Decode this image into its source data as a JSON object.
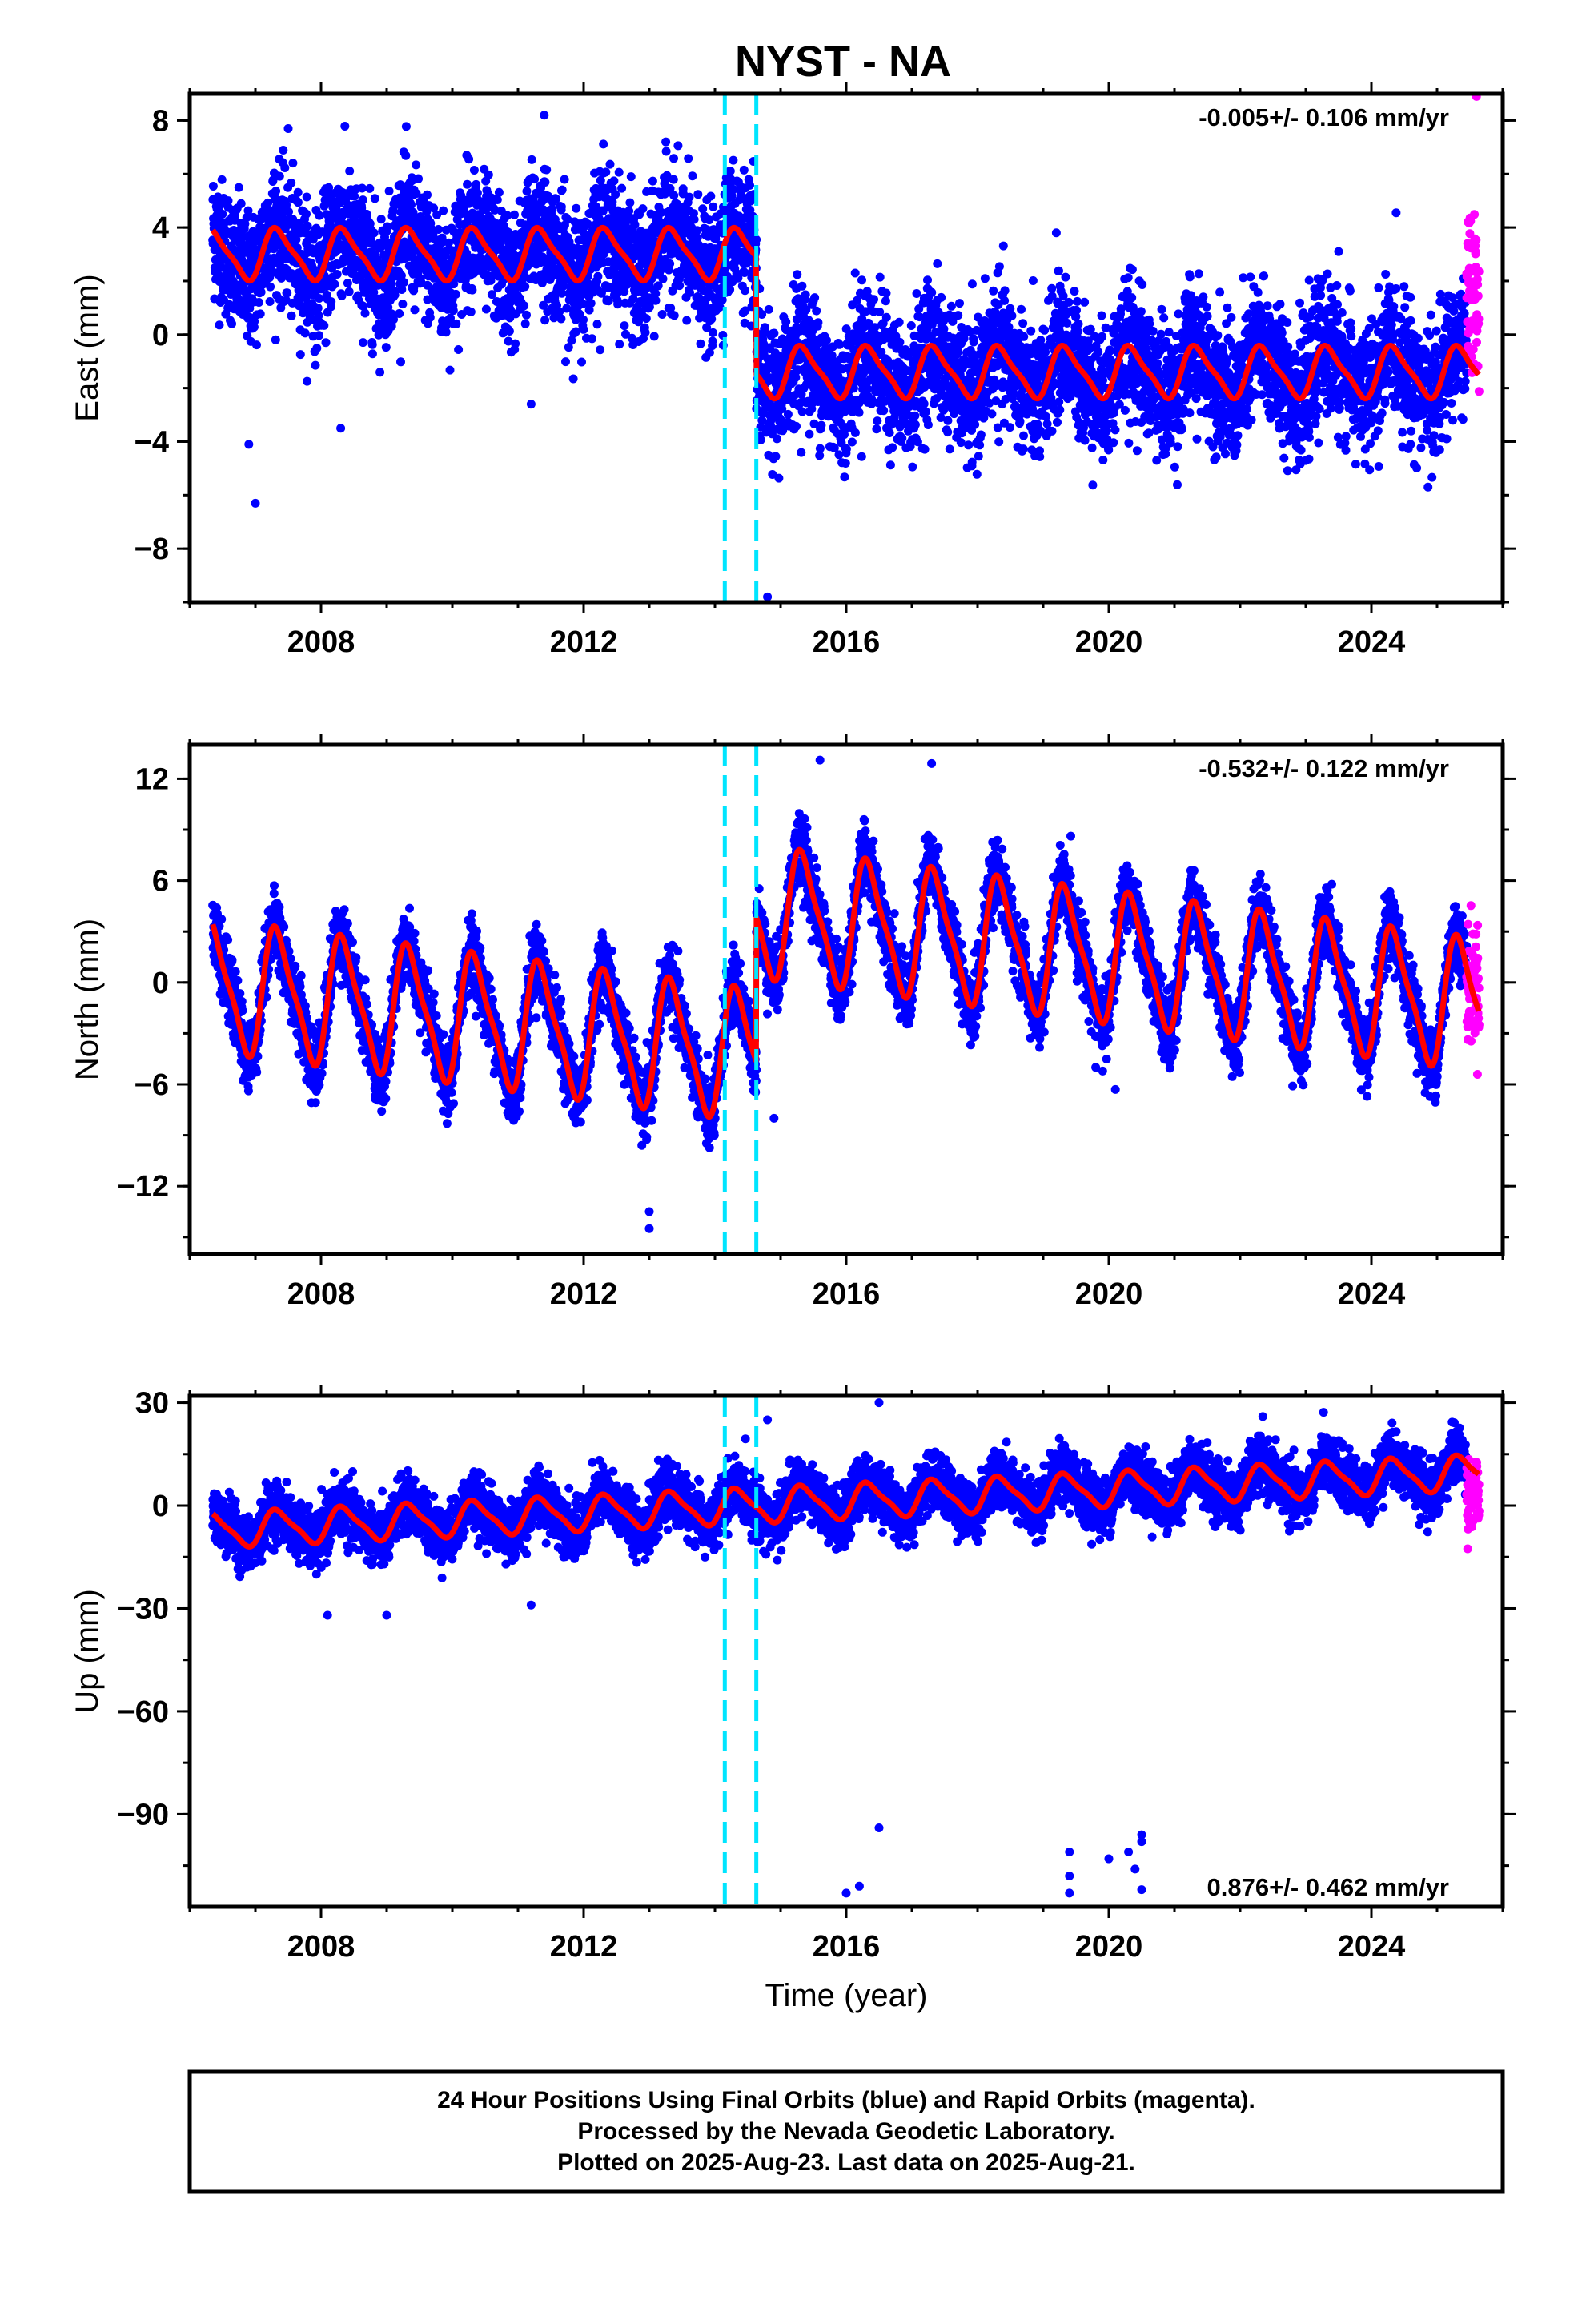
{
  "title": "NYST - NA",
  "colors": {
    "final_orbits": "#0000ff",
    "rapid_orbits": "#ff00ff",
    "model_fit": "#ff0000",
    "event_lines": "#00e5ff",
    "frame": "#000000"
  },
  "footer": {
    "line1": "24 Hour Positions Using Final Orbits (blue) and Rapid Orbits (magenta).",
    "line2": "Processed by the Nevada Geodetic Laboratory.",
    "line3": "Plotted on 2025-Aug-23. Last data on 2025-Aug-21."
  },
  "chart_data": [
    {
      "type": "scatter",
      "component": "East",
      "ylabel": "East (mm)",
      "xlabel": "",
      "xlim": [
        2006.0,
        2026.0
      ],
      "ylim": [
        -10,
        9
      ],
      "xticks": [
        "2008",
        "2012",
        "2016",
        "2020",
        "2024"
      ],
      "yticks": [
        "8",
        "4",
        "0",
        "−4",
        "−8"
      ],
      "rate_label": "-0.005+/- 0.106 mm/yr",
      "rate_position": "top-right",
      "event_lines": [
        2014.15,
        2014.63
      ],
      "series": [
        {
          "name": "Final Orbits (blue)",
          "kind": "points",
          "x_range": [
            2006.35,
            2025.45
          ],
          "offset_segments": [
            {
              "from": 2006.35,
              "to": 2014.63,
              "level": 3.0
            },
            {
              "from": 2014.63,
              "to": 2025.45,
              "level": -1.4
            }
          ],
          "annual_amplitude": 0.9,
          "scatter": 1.2
        },
        {
          "name": "Rapid Orbits (magenta)",
          "kind": "points",
          "x_range": [
            2025.45,
            2025.64
          ],
          "level": 1.5,
          "scatter": 1.5
        },
        {
          "name": "Model fit",
          "kind": "line",
          "offset_segments": [
            {
              "from": 2006.35,
              "to": 2014.63,
              "level": 3.0
            },
            {
              "from": 2014.63,
              "to": 2025.64,
              "level": -1.4
            }
          ],
          "annual_amplitude": 0.9
        }
      ],
      "outliers": [
        [
          2007.0,
          -6.3
        ],
        [
          2006.9,
          -4.1
        ],
        [
          2008.3,
          -3.5
        ],
        [
          2011.2,
          -2.6
        ],
        [
          2014.8,
          -9.8
        ],
        [
          2019.2,
          3.8
        ],
        [
          2023.5,
          3.1
        ],
        [
          2025.6,
          8.9
        ],
        [
          2011.4,
          8.2
        ],
        [
          2007.5,
          7.7
        ]
      ]
    },
    {
      "type": "scatter",
      "component": "North",
      "ylabel": "North (mm)",
      "xlabel": "",
      "xlim": [
        2006.0,
        2026.0
      ],
      "ylim": [
        -16,
        14
      ],
      "xticks": [
        "2008",
        "2012",
        "2016",
        "2020",
        "2024"
      ],
      "yticks": [
        "12",
        "6",
        "0",
        "−6",
        "−12"
      ],
      "rate_label": "-0.532+/- 0.122 mm/yr",
      "rate_position": "top-right",
      "event_lines": [
        2014.15,
        2014.63
      ],
      "series": [
        {
          "name": "Final Orbits (blue)",
          "kind": "points",
          "x_range": [
            2006.35,
            2025.45
          ],
          "offset_segments": [
            {
              "from": 2006.35,
              "to": 2014.63,
              "level": -2.0,
              "trend": -0.5
            },
            {
              "from": 2014.63,
              "to": 2025.45,
              "level": 6.5,
              "trend": -0.5
            }
          ],
          "annual_amplitude": 3.6,
          "scatter": 1.0
        },
        {
          "name": "Rapid Orbits (magenta)",
          "kind": "points",
          "x_range": [
            2025.45,
            2025.64
          ],
          "level": 0.0,
          "scatter": 1.6
        },
        {
          "name": "Model fit",
          "kind": "line",
          "offset_segments": [
            {
              "from": 2006.35,
              "to": 2014.63,
              "level": -2.0,
              "trend": -0.5
            },
            {
              "from": 2014.63,
              "to": 2025.64,
              "level": 6.5,
              "trend": -0.5
            }
          ],
          "annual_amplitude": 3.6
        }
      ],
      "outliers": [
        [
          2013.0,
          -14.5
        ],
        [
          2013.0,
          -13.5
        ],
        [
          2014.9,
          -8.0
        ],
        [
          2020.1,
          -6.3
        ],
        [
          2022.8,
          -6.1
        ],
        [
          2024.9,
          -6.0
        ],
        [
          2019.8,
          -5.0
        ],
        [
          2015.6,
          13.1
        ],
        [
          2017.3,
          12.9
        ]
      ]
    },
    {
      "type": "scatter",
      "component": "Up",
      "ylabel": "Up (mm)",
      "xlabel": "Time (year)",
      "xlim": [
        2006.0,
        2026.0
      ],
      "ylim": [
        -117,
        32
      ],
      "xticks": [
        "2008",
        "2012",
        "2016",
        "2020",
        "2024"
      ],
      "yticks": [
        "30",
        "0",
        "−30",
        "−60",
        "−90"
      ],
      "rate_label": "0.876+/- 0.462 mm/yr",
      "rate_position": "bottom-right",
      "event_lines": [
        2014.15,
        2014.63
      ],
      "series": [
        {
          "name": "Final Orbits (blue)",
          "kind": "points",
          "x_range": [
            2006.35,
            2025.45
          ],
          "offset_segments": [
            {
              "from": 2006.35,
              "to": 2025.45,
              "level": -4.0,
              "trend": 0.876
            }
          ],
          "annual_amplitude": 4.8,
          "scatter": 4.0
        },
        {
          "name": "Rapid Orbits (magenta)",
          "kind": "points",
          "x_range": [
            2025.45,
            2025.64
          ],
          "level": 3.0,
          "scatter": 5.0
        },
        {
          "name": "Model fit",
          "kind": "line",
          "offset_segments": [
            {
              "from": 2006.35,
              "to": 2025.64,
              "level": -4.0,
              "trend": 0.876
            }
          ],
          "annual_amplitude": 4.8
        }
      ],
      "outliers": [
        [
          2016.0,
          -113
        ],
        [
          2016.2,
          -111
        ],
        [
          2016.5,
          -94
        ],
        [
          2019.4,
          -101
        ],
        [
          2019.4,
          -108
        ],
        [
          2019.4,
          -113
        ],
        [
          2020.0,
          -103
        ],
        [
          2020.3,
          -101
        ],
        [
          2020.4,
          -106
        ],
        [
          2020.5,
          -96
        ],
        [
          2020.5,
          -98
        ],
        [
          2020.5,
          -112
        ],
        [
          2008.1,
          -32
        ],
        [
          2009.0,
          -32
        ],
        [
          2011.2,
          -29
        ],
        [
          2016.5,
          30
        ],
        [
          2014.8,
          25
        ]
      ]
    }
  ]
}
